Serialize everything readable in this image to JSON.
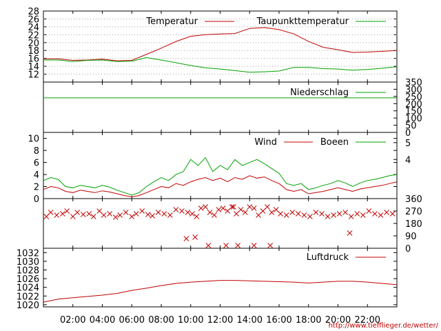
{
  "colors": {
    "red": "#c00000",
    "green": "#00a000",
    "grid": "#a0a0a0"
  },
  "footer": {
    "url": "http://www.tiefflieger.de/wetter/"
  },
  "x_axis": {
    "range_hours": [
      0,
      24
    ],
    "tick_labels": [
      "02:00",
      "04:00",
      "06:00",
      "08:00",
      "10:00",
      "12:00",
      "14:00",
      "16:00",
      "18:00",
      "20:00",
      "22:00"
    ],
    "tick_hours": [
      2,
      4,
      6,
      8,
      10,
      12,
      14,
      16,
      18,
      20,
      22
    ]
  },
  "chart_data": [
    {
      "type": "line",
      "panel": "temperature",
      "ylim": [
        10,
        28
      ],
      "yticks": [
        12,
        14,
        16,
        18,
        20,
        22,
        24,
        26,
        28
      ],
      "ytick_labels": [
        "12",
        "14",
        "16",
        "18",
        "20",
        "22",
        "24",
        "26",
        "28"
      ],
      "grid": "dotted",
      "x": [
        0,
        1,
        2,
        3,
        4,
        5,
        6,
        7,
        8,
        9,
        10,
        11,
        12,
        13,
        14,
        15,
        16,
        17,
        18,
        19,
        20,
        21,
        22,
        23,
        24
      ],
      "series": [
        {
          "name": "Temperatur",
          "color": "red",
          "values": [
            15.9,
            15.9,
            15.5,
            15.6,
            15.8,
            15.4,
            15.5,
            17.0,
            18.6,
            20.3,
            21.6,
            22.0,
            22.2,
            22.3,
            23.6,
            23.8,
            23.3,
            22.2,
            20.3,
            18.8,
            18.2,
            17.5,
            17.6,
            17.8,
            18.0
          ]
        },
        {
          "name": "Taupunkttemperatur",
          "color": "green",
          "values": [
            15.6,
            15.6,
            15.2,
            15.5,
            15.6,
            15.2,
            15.3,
            16.2,
            15.6,
            14.9,
            14.2,
            13.6,
            13.3,
            12.9,
            12.5,
            12.6,
            12.8,
            13.7,
            13.7,
            13.4,
            13.3,
            13.0,
            13.2,
            13.5,
            13.9
          ]
        }
      ]
    },
    {
      "type": "line",
      "panel": "precipitation",
      "ylim": [
        0,
        350
      ],
      "yticks": [
        0,
        50,
        100,
        150,
        200,
        250,
        300,
        350
      ],
      "ytick_labels": [
        "0",
        "50",
        "100",
        "150",
        "200",
        "250",
        "300",
        "350"
      ],
      "x": [
        0,
        24
      ],
      "series": [
        {
          "name": "Niederschlag",
          "color": "green",
          "values": [
            240,
            240
          ]
        }
      ]
    },
    {
      "type": "line",
      "panel": "wind",
      "ylim": [
        0,
        11
      ],
      "yticks": [
        0,
        2,
        4,
        6,
        8,
        10
      ],
      "ytick_labels": [
        "0",
        "2",
        "4",
        "6",
        "8",
        "10"
      ],
      "right_ticks": [
        4,
        5
      ],
      "right_tick_positions": [
        6.5,
        9.3
      ],
      "x": [
        0,
        0.5,
        1,
        1.5,
        2,
        2.5,
        3,
        3.5,
        4,
        4.5,
        5,
        5.5,
        6,
        6.5,
        7,
        7.5,
        8,
        8.5,
        9,
        9.5,
        10,
        10.5,
        11,
        11.5,
        12,
        12.5,
        13,
        13.5,
        14,
        14.5,
        15,
        15.5,
        16,
        16.5,
        17,
        17.5,
        18,
        18.5,
        19,
        19.5,
        20,
        20.5,
        21,
        21.5,
        22,
        22.5,
        23,
        23.5,
        24
      ],
      "series": [
        {
          "name": "Wind",
          "color": "red",
          "values": [
            1.5,
            2.0,
            1.8,
            1.2,
            1.0,
            1.4,
            1.2,
            1.0,
            1.3,
            1.1,
            0.8,
            0.5,
            0.3,
            0.5,
            1.0,
            1.5,
            2.0,
            1.8,
            2.5,
            2.2,
            2.8,
            3.2,
            3.5,
            3.0,
            3.4,
            2.8,
            3.5,
            3.2,
            3.8,
            3.4,
            3.6,
            3.0,
            2.5,
            1.5,
            1.2,
            1.5,
            0.8,
            1.0,
            1.2,
            1.5,
            1.8,
            1.5,
            1.2,
            1.6,
            1.8,
            2.0,
            2.2,
            2.5,
            2.8
          ]
        },
        {
          "name": "Boeen",
          "color": "green",
          "values": [
            3.0,
            3.5,
            3.2,
            2.0,
            1.8,
            2.2,
            2.0,
            1.8,
            2.2,
            1.9,
            1.4,
            1.0,
            0.6,
            1.0,
            2.0,
            2.8,
            3.5,
            3.0,
            4.0,
            4.5,
            6.5,
            5.5,
            6.8,
            4.5,
            5.5,
            4.8,
            6.5,
            5.5,
            6.0,
            6.5,
            5.8,
            5.0,
            4.2,
            2.5,
            2.2,
            2.5,
            1.5,
            1.8,
            2.2,
            2.5,
            3.0,
            2.6,
            2.0,
            2.6,
            3.0,
            3.2,
            3.5,
            3.8,
            4.0
          ]
        }
      ]
    },
    {
      "type": "scatter",
      "panel": "wind_direction",
      "ylim": [
        0,
        360
      ],
      "right_ticks": [
        0,
        90,
        180,
        270,
        360
      ],
      "right_tick_labels": [
        "0",
        "90",
        "180",
        "270",
        "360"
      ],
      "color": "red",
      "x": [
        0.2,
        0.5,
        0.9,
        1.3,
        1.6,
        2.0,
        2.3,
        2.7,
        3.1,
        3.4,
        3.8,
        4.1,
        4.5,
        4.9,
        5.2,
        5.6,
        6.0,
        6.3,
        6.7,
        7.1,
        7.4,
        7.8,
        8.2,
        8.6,
        9.0,
        9.4,
        9.8,
        10.1,
        10.4,
        10.7,
        11.0,
        11.3,
        11.6,
        11.9,
        12.2,
        12.5,
        12.8,
        13.1,
        13.4,
        13.7,
        14.0,
        14.3,
        14.6,
        14.9,
        15.2,
        15.5,
        15.8,
        16.1,
        16.5,
        16.9,
        17.3,
        17.7,
        18.1,
        18.5,
        18.9,
        19.3,
        19.7,
        20.1,
        20.5,
        20.9,
        21.3,
        21.7,
        22.1,
        22.5,
        22.9,
        23.3,
        23.7,
        10.3,
        11.2,
        12.4,
        13.2,
        14.3,
        15.4,
        9.7,
        12.9,
        20.8
      ],
      "y": [
        230,
        260,
        240,
        250,
        270,
        230,
        260,
        245,
        250,
        230,
        270,
        240,
        250,
        225,
        240,
        260,
        230,
        250,
        270,
        245,
        235,
        260,
        250,
        240,
        280,
        270,
        260,
        250,
        230,
        290,
        300,
        260,
        240,
        280,
        290,
        270,
        300,
        250,
        280,
        260,
        300,
        290,
        240,
        270,
        300,
        260,
        280,
        250,
        240,
        260,
        250,
        240,
        230,
        260,
        250,
        230,
        240,
        250,
        260,
        230,
        250,
        240,
        270,
        250,
        240,
        260,
        250,
        80,
        20,
        20,
        20,
        20,
        20,
        70,
        300,
        110
      ]
    },
    {
      "type": "line",
      "panel": "pressure",
      "ylim": [
        1019.5,
        1033
      ],
      "yticks": [
        1020,
        1022,
        1024,
        1026,
        1028,
        1030,
        1032
      ],
      "ytick_labels": [
        "1020",
        "1022",
        "1024",
        "1026",
        "1028",
        "1030",
        "1032"
      ],
      "x": [
        0,
        1,
        2,
        3,
        4,
        5,
        6,
        7,
        8,
        9,
        10,
        11,
        12,
        13,
        14,
        15,
        16,
        17,
        18,
        19,
        20,
        21,
        22,
        23,
        24
      ],
      "series": [
        {
          "name": "Luftdruck",
          "color": "red",
          "values": [
            1020.6,
            1021.3,
            1021.6,
            1021.9,
            1022.2,
            1022.6,
            1023.3,
            1023.8,
            1024.4,
            1024.9,
            1025.2,
            1025.4,
            1025.6,
            1025.6,
            1025.5,
            1025.4,
            1025.3,
            1025.2,
            1025.0,
            1025.2,
            1025.4,
            1025.4,
            1025.2,
            1024.9,
            1024.6
          ]
        }
      ]
    }
  ]
}
